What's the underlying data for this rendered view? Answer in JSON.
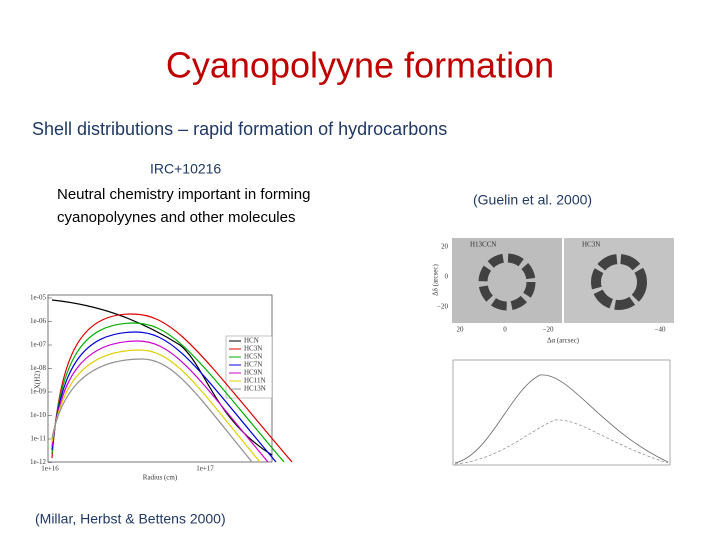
{
  "title": "Cyanopolyyne formation",
  "subtitle": "Shell distributions – rapid formation of hydrocarbons",
  "source_label": "IRC+10216",
  "description": [
    "Neutral chemistry important in forming",
    "cyanopolyynes and other molecules"
  ],
  "right_citation": "(Guelin et al. 2000)",
  "left_citation": "(Millar, Herbst & Bettens 2000)",
  "model_figure": {
    "y_ticks": [
      "1e-05",
      "1e-06",
      "1e-07",
      "1e-08",
      "1e-09",
      "1e-10",
      "1e-11",
      "1e-12"
    ],
    "x_ticks": [
      "1e+16",
      "1e+17"
    ],
    "x_label": "Radius (cm)",
    "y_label": "X(H2)",
    "legend": [
      {
        "name": "HCN",
        "color": "#000000"
      },
      {
        "name": "HC3N",
        "color": "#e00000"
      },
      {
        "name": "HC5N",
        "color": "#00b000"
      },
      {
        "name": "HC7N",
        "color": "#0000e0"
      },
      {
        "name": "HC9N",
        "color": "#d000d0"
      },
      {
        "name": "HC11N",
        "color": "#e0d000"
      },
      {
        "name": "HC13N",
        "color": "#909090"
      }
    ]
  },
  "map_figure": {
    "panels": [
      "H13CCN",
      "HC3N"
    ],
    "y_ticks": [
      "20",
      "0",
      "−20"
    ],
    "x_ticks": [
      "20",
      "0",
      "−20",
      "−40"
    ],
    "x_label": "Δα (arcsec)",
    "y_label": "Δδ (arcsec)"
  }
}
